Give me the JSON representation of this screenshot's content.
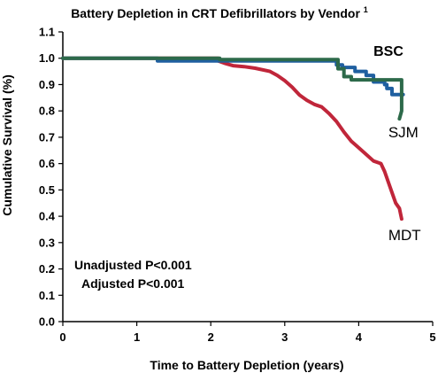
{
  "chart_data": {
    "type": "line",
    "title": "Battery Depletion in CRT Defibrillators by Vendor",
    "title_superscript": "1",
    "xlabel": "Time to Battery Depletion (years)",
    "ylabel": "Cumulative Survival (%)",
    "xlim": [
      0,
      5
    ],
    "ylim": [
      0,
      1.1
    ],
    "x_ticks": [
      "0",
      "1",
      "2",
      "3",
      "4",
      "5"
    ],
    "y_ticks": [
      "0.0",
      "0.1",
      "0.2",
      "0.3",
      "0.4",
      "0.5",
      "0.6",
      "0.7",
      "0.8",
      "0.9",
      "1.0",
      "1.1"
    ],
    "grid": false,
    "legend": "none",
    "series": [
      {
        "name": "MDT",
        "color": "#c0263a",
        "points": [
          [
            0,
            1.0
          ],
          [
            2.1,
            1.0
          ],
          [
            2.1,
            0.99
          ],
          [
            2.2,
            0.98
          ],
          [
            2.3,
            0.972
          ],
          [
            2.45,
            0.968
          ],
          [
            2.6,
            0.962
          ],
          [
            2.8,
            0.95
          ],
          [
            2.9,
            0.935
          ],
          [
            3.0,
            0.915
          ],
          [
            3.1,
            0.89
          ],
          [
            3.2,
            0.86
          ],
          [
            3.3,
            0.84
          ],
          [
            3.4,
            0.825
          ],
          [
            3.5,
            0.815
          ],
          [
            3.6,
            0.79
          ],
          [
            3.7,
            0.76
          ],
          [
            3.8,
            0.72
          ],
          [
            3.9,
            0.685
          ],
          [
            4.0,
            0.66
          ],
          [
            4.1,
            0.635
          ],
          [
            4.2,
            0.61
          ],
          [
            4.3,
            0.6
          ],
          [
            4.35,
            0.57
          ],
          [
            4.4,
            0.53
          ],
          [
            4.45,
            0.49
          ],
          [
            4.5,
            0.45
          ],
          [
            4.55,
            0.43
          ],
          [
            4.58,
            0.39
          ]
        ]
      },
      {
        "name": "SJM",
        "color": "#1f5fa0",
        "points": [
          [
            0,
            1.0
          ],
          [
            1.28,
            1.0
          ],
          [
            1.28,
            0.99
          ],
          [
            3.0,
            0.99
          ],
          [
            3.7,
            0.99
          ],
          [
            3.7,
            0.975
          ],
          [
            3.78,
            0.975
          ],
          [
            3.78,
            0.965
          ],
          [
            3.95,
            0.965
          ],
          [
            3.95,
            0.95
          ],
          [
            4.1,
            0.95
          ],
          [
            4.1,
            0.935
          ],
          [
            4.2,
            0.935
          ],
          [
            4.2,
            0.91
          ],
          [
            4.35,
            0.91
          ],
          [
            4.35,
            0.9
          ],
          [
            4.38,
            0.9
          ],
          [
            4.38,
            0.885
          ],
          [
            4.45,
            0.885
          ],
          [
            4.45,
            0.862
          ],
          [
            4.6,
            0.862
          ]
        ]
      },
      {
        "name": "BSC",
        "color": "#2d6a4a",
        "points": [
          [
            0,
            1.0
          ],
          [
            2.12,
            1.0
          ],
          [
            2.12,
            0.995
          ],
          [
            3.72,
            0.995
          ],
          [
            3.72,
            0.96
          ],
          [
            3.8,
            0.96
          ],
          [
            3.8,
            0.93
          ],
          [
            3.9,
            0.93
          ],
          [
            3.9,
            0.918
          ],
          [
            4.58,
            0.918
          ],
          [
            4.58,
            0.8
          ],
          [
            4.55,
            0.77
          ]
        ]
      }
    ],
    "series_labels": [
      {
        "text": "BSC",
        "style": "bold",
        "x": 4.2,
        "y": 1.01
      },
      {
        "text": "SJM",
        "style": "normal",
        "x": 4.4,
        "y": 0.7
      },
      {
        "text": "MDT",
        "style": "normal",
        "x": 4.4,
        "y": 0.31
      }
    ],
    "annotations": [
      "Unadjusted P<0.001",
      "Adjusted P<0.001"
    ]
  }
}
